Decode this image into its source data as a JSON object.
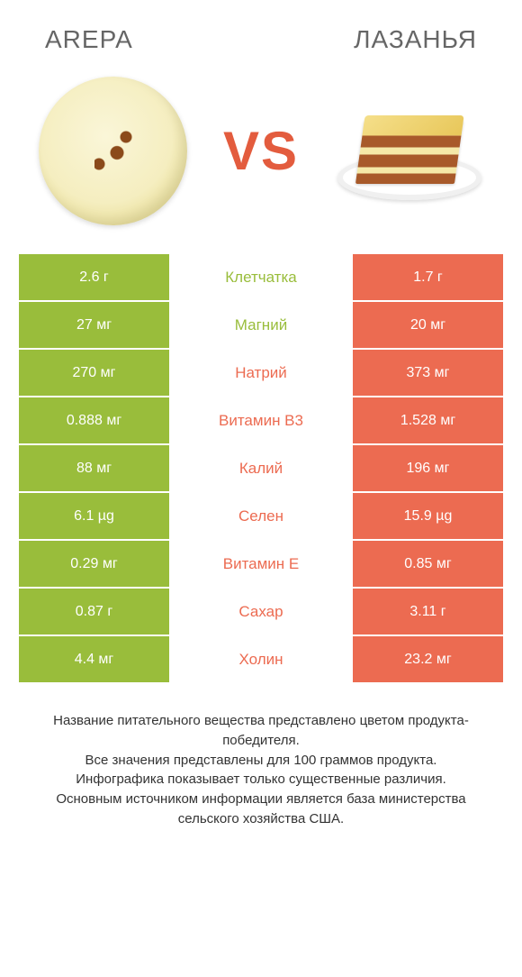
{
  "header": {
    "left_title": "Arepa",
    "right_title": "Лазанья"
  },
  "vs_label": "VS",
  "colors": {
    "left_bar": "#99bd3b",
    "right_bar": "#ec6b51",
    "label_green": "#99bd3b",
    "label_orange": "#ec6b51",
    "background": "#ffffff"
  },
  "rows": [
    {
      "left": "2.6 г",
      "label": "Клетчатка",
      "right": "1.7 г",
      "winner": "left"
    },
    {
      "left": "27 мг",
      "label": "Магний",
      "right": "20 мг",
      "winner": "left"
    },
    {
      "left": "270 мг",
      "label": "Натрий",
      "right": "373 мг",
      "winner": "right"
    },
    {
      "left": "0.888 мг",
      "label": "Витамин B3",
      "right": "1.528 мг",
      "winner": "right"
    },
    {
      "left": "88 мг",
      "label": "Калий",
      "right": "196 мг",
      "winner": "right"
    },
    {
      "left": "6.1 µg",
      "label": "Селен",
      "right": "15.9 µg",
      "winner": "right"
    },
    {
      "left": "0.29 мг",
      "label": "Витамин E",
      "right": "0.85 мг",
      "winner": "right"
    },
    {
      "left": "0.87 г",
      "label": "Сахар",
      "right": "3.11 г",
      "winner": "right"
    },
    {
      "left": "4.4 мг",
      "label": "Холин",
      "right": "23.2 мг",
      "winner": "right"
    }
  ],
  "footnote": "Название питательного вещества представлено цветом продукта-победителя.\nВсе значения представлены для 100 граммов продукта.\nИнфографика показывает только существенные различия.\nОсновным источником информации является база министерства сельского хозяйства США."
}
